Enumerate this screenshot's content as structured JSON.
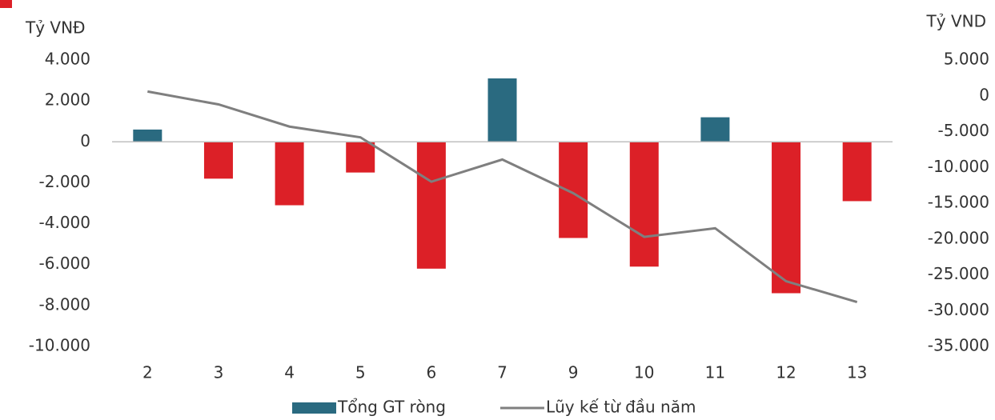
{
  "chart_data": {
    "type": "bar_line",
    "y_label": "Tỷ VNĐ",
    "y2_label": "Tỷ VND",
    "categories": [
      "2",
      "3",
      "4",
      "5",
      "6",
      "7",
      "9",
      "10",
      "11",
      "12",
      "13"
    ],
    "series": [
      {
        "name": "Tổng GT ròng",
        "type": "bar",
        "color": "#2a6a80",
        "negative_color": "#dc2027",
        "values": [
          600,
          -1800,
          -3100,
          -1500,
          -6200,
          3100,
          -4700,
          -6100,
          1200,
          -7400,
          -2900
        ]
      },
      {
        "name": "Lũy kế từ đầu năm",
        "type": "line",
        "axis": "y2",
        "color": "#7f7f7f",
        "values": [
          600,
          -1200,
          -4300,
          -5800,
          -12000,
          -8900,
          -13600,
          -19700,
          -18500,
          -25900,
          -28800
        ]
      }
    ],
    "ylim": [
      -10000,
      4000
    ],
    "yticks": [
      {
        "value": -10000,
        "label": "-10.000"
      },
      {
        "value": -8000,
        "label": "-8.000"
      },
      {
        "value": -6000,
        "label": "-6.000"
      },
      {
        "value": -4000,
        "label": "-4.000"
      },
      {
        "value": -2000,
        "label": "-2.000"
      },
      0,
      {
        "value": 2000,
        "label": "2.000"
      },
      {
        "value": 4000,
        "label": "4.000"
      }
    ],
    "y2lim": [
      -35000,
      5000
    ],
    "y2ticks": [
      {
        "value": -35000,
        "label": "-35.000"
      },
      {
        "value": -30000,
        "label": "-30.000"
      },
      {
        "value": -25000,
        "label": "-25.000"
      },
      {
        "value": -20000,
        "label": "-20.000"
      },
      {
        "value": -15000,
        "label": "-15.000"
      },
      {
        "value": -10000,
        "label": "-10.000"
      },
      {
        "value": -5000,
        "label": "-5.000"
      },
      0,
      {
        "value": 5000,
        "label": "5.000"
      }
    ],
    "grid": false
  }
}
